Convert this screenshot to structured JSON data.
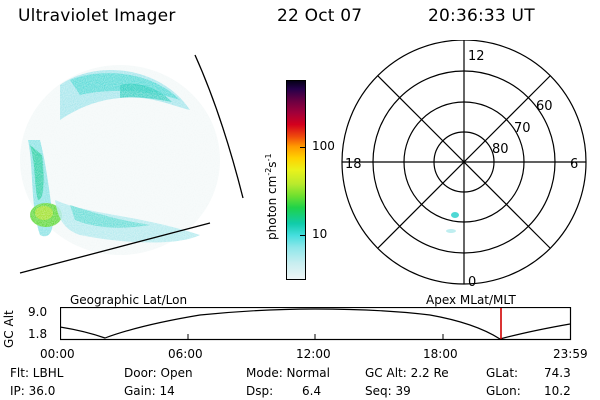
{
  "header": {
    "instrument": "Ultraviolet Imager",
    "date": "22 Oct 07",
    "time": "20:36:33 UT"
  },
  "colorbar": {
    "label_main": "photon cm",
    "label_exp1": "-2",
    "label_mid": "s",
    "label_exp2": "-1",
    "tick_100": "100",
    "tick_10": "10"
  },
  "polar_plot": {
    "mlt_top": "12",
    "mlt_bottom": "0",
    "mlt_left": "18",
    "mlt_right": "6",
    "lat_60": "60",
    "lat_70": "70",
    "lat_80": "80"
  },
  "timeline": {
    "left_title": "Geographic Lat/Lon",
    "right_title": "Apex MLat/MLT",
    "y_axis_label": "GC Alt",
    "y_top": "9.0",
    "y_bottom": "1.8",
    "x_labels": [
      "00:00",
      "06:00",
      "12:00",
      "18:00",
      "23:59"
    ],
    "current_marker_color": "#d00000"
  },
  "info": {
    "flt": "Flt: LBHL",
    "door": "Door: Open",
    "mode": "Mode: Normal",
    "gcalt": "GC Alt: 2.2 Re",
    "glat_label": "GLat:",
    "glat_value": "74.3",
    "ip": "IP: 36.0",
    "gain": "Gain: 14",
    "dsp_label": "Dsp:",
    "dsp_value": "6.4",
    "seq": "Seq: 39",
    "glon_label": "GLon:",
    "glon_value": "10.2"
  }
}
